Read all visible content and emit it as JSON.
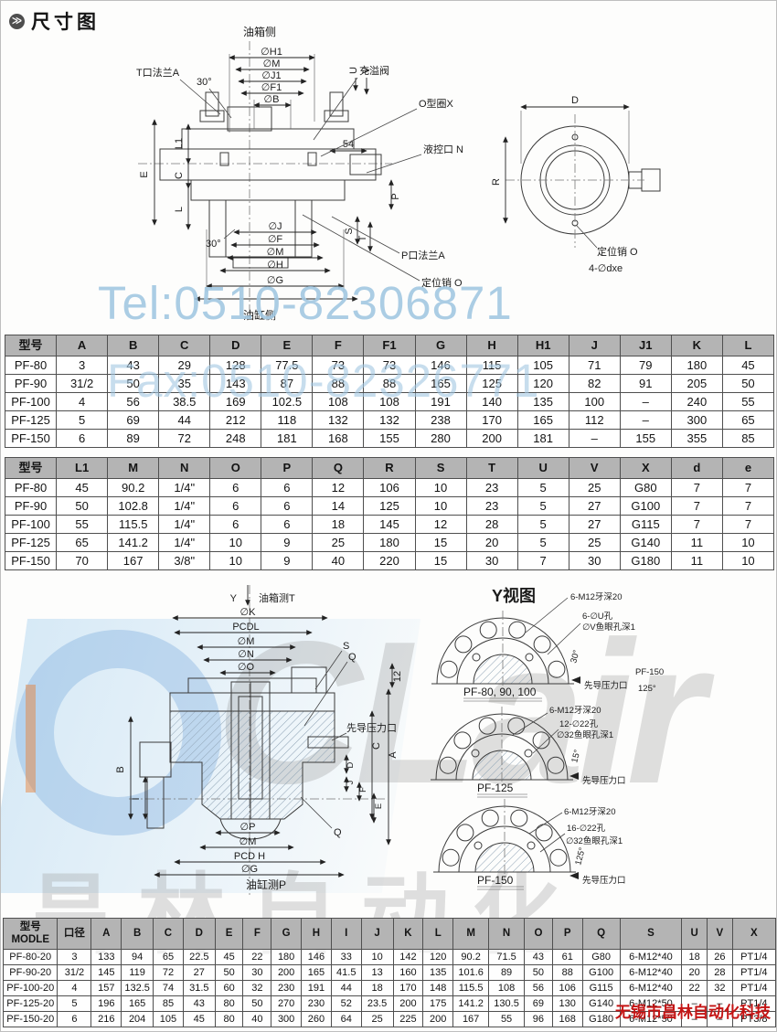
{
  "header": {
    "icon": "≫",
    "title": "尺寸图"
  },
  "wm": {
    "tel": "Tel:0510-82306871",
    "fax": "Fax:0510-82326771",
    "logo": "CLair",
    "logo_cn": "昌林自动化",
    "company": "无锡市昌林自动化科技",
    "accent_blue": "#a3c8e2",
    "accent_red": "#c41414"
  },
  "d1": {
    "tank_side": "油箱侧",
    "cyl_side": "油缸侧",
    "top_dims": [
      "∅H1",
      "∅M",
      "∅J1",
      "∅F1",
      "∅B"
    ],
    "bottom_dims": [
      "∅J",
      "∅F",
      "∅M",
      "∅H",
      "∅G"
    ],
    "left_dims": [
      "E",
      "L1",
      "C",
      "L"
    ],
    "t_flange": "T口法兰A",
    "fill_valve": "充溢阀",
    "o_ring": "O型圈X",
    "pilot_port": "液控口 N",
    "p_flange": "P口法兰A",
    "pin": "定位销 O",
    "angle_top": "30°",
    "angle_bottom": "30°",
    "dim54": "54",
    "dim_u": "U",
    "dim_v": "V",
    "dim_p": "P",
    "dim_s": "S",
    "dim_t": "T",
    "circle_d": "D",
    "circle_r": "R",
    "holes": "4-∅dxe"
  },
  "table1": {
    "headers": [
      "型号",
      "A",
      "B",
      "C",
      "D",
      "E",
      "F",
      "F1",
      "G",
      "H",
      "H1",
      "J",
      "J1",
      "K",
      "L"
    ],
    "rows": [
      [
        "PF-80",
        "3",
        "43",
        "29",
        "128",
        "77.5",
        "73",
        "73",
        "146",
        "115",
        "105",
        "71",
        "79",
        "180",
        "45"
      ],
      [
        "PF-90",
        "31/2",
        "50",
        "35",
        "143",
        "87",
        "88",
        "88",
        "165",
        "125",
        "120",
        "82",
        "91",
        "205",
        "50"
      ],
      [
        "PF-100",
        "4",
        "56",
        "38.5",
        "169",
        "102.5",
        "108",
        "108",
        "191",
        "140",
        "135",
        "100",
        "–",
        "240",
        "55"
      ],
      [
        "PF-125",
        "5",
        "69",
        "44",
        "212",
        "118",
        "132",
        "132",
        "238",
        "170",
        "165",
        "112",
        "–",
        "300",
        "65"
      ],
      [
        "PF-150",
        "6",
        "89",
        "72",
        "248",
        "181",
        "168",
        "155",
        "280",
        "200",
        "181",
        "–",
        "155",
        "355",
        "85"
      ]
    ]
  },
  "table2": {
    "headers": [
      "型号",
      "L1",
      "M",
      "N",
      "O",
      "P",
      "Q",
      "R",
      "S",
      "T",
      "U",
      "V",
      "X",
      "d",
      "e"
    ],
    "rows": [
      [
        "PF-80",
        "45",
        "90.2",
        "1/4\"",
        "6",
        "6",
        "12",
        "106",
        "10",
        "23",
        "5",
        "25",
        "G80",
        "7",
        "7"
      ],
      [
        "PF-90",
        "50",
        "102.8",
        "1/4\"",
        "6",
        "6",
        "14",
        "125",
        "10",
        "23",
        "5",
        "27",
        "G100",
        "7",
        "7"
      ],
      [
        "PF-100",
        "55",
        "115.5",
        "1/4\"",
        "6",
        "6",
        "18",
        "145",
        "12",
        "28",
        "5",
        "27",
        "G115",
        "7",
        "7"
      ],
      [
        "PF-125",
        "65",
        "141.2",
        "1/4\"",
        "10",
        "9",
        "25",
        "180",
        "15",
        "20",
        "5",
        "25",
        "G140",
        "11",
        "10"
      ],
      [
        "PF-150",
        "70",
        "167",
        "3/8\"",
        "10",
        "9",
        "40",
        "220",
        "15",
        "30",
        "7",
        "30",
        "G180",
        "11",
        "10"
      ]
    ]
  },
  "d2": {
    "y": "Y",
    "tank_t": "油箱测T",
    "cyl_p": "油缸测P",
    "top_dims": [
      "∅K",
      "PCDL",
      "∅M",
      "∅N",
      "∅O"
    ],
    "bottom_dims": [
      "∅P",
      "∅M",
      "PCD H",
      "∅G"
    ],
    "dim_b": "B",
    "dim_i": "I",
    "dim_12": "12",
    "dim_c": "C",
    "dim_a": "A",
    "dim_d": "D",
    "dim_j": "J",
    "dim_f": "F",
    "dim_e": "E",
    "s": "S",
    "q": "Q",
    "pilot": "先导压力口",
    "yview": {
      "title": "Y视图",
      "v1": {
        "label": "PF-80, 90, 100",
        "c1": "6-M12牙深20",
        "c2": "6-∅U孔",
        "c3": "∅V鱼眼孔深1",
        "angle": "30°",
        "pilot": "先导压力口",
        "note1": "PF-150",
        "note2": "125°"
      },
      "v2": {
        "label": "PF-125",
        "c1": "6-M12牙深20",
        "c2": "12-∅22孔",
        "c3": "∅32鱼眼孔深1",
        "angle": "15°",
        "pilot": "先导压力口"
      },
      "v3": {
        "label": "PF-150",
        "c1": "6-M12牙深20",
        "c2": "16-∅22孔",
        "c3": "∅32鱼眼孔深1",
        "angle": "125°",
        "pilot": "先导压力口"
      }
    }
  },
  "table3": {
    "headers": [
      "型号\nMODLE",
      "口径",
      "A",
      "B",
      "C",
      "D",
      "E",
      "F",
      "G",
      "H",
      "I",
      "J",
      "K",
      "L",
      "M",
      "N",
      "O",
      "P",
      "Q",
      "S",
      "U",
      "V",
      "X"
    ],
    "rows": [
      [
        "PF-80-20",
        "3",
        "133",
        "94",
        "65",
        "22.5",
        "45",
        "22",
        "180",
        "146",
        "33",
        "10",
        "142",
        "120",
        "90.2",
        "71.5",
        "43",
        "61",
        "G80",
        "6-M12*40",
        "18",
        "26",
        "PT1/4"
      ],
      [
        "PF-90-20",
        "31/2",
        "145",
        "119",
        "72",
        "27",
        "50",
        "30",
        "200",
        "165",
        "41.5",
        "13",
        "160",
        "135",
        "101.6",
        "89",
        "50",
        "88",
        "G100",
        "6-M12*40",
        "20",
        "28",
        "PT1/4"
      ],
      [
        "PF-100-20",
        "4",
        "157",
        "132.5",
        "74",
        "31.5",
        "60",
        "32",
        "230",
        "191",
        "44",
        "18",
        "170",
        "148",
        "115.5",
        "108",
        "56",
        "106",
        "G115",
        "6-M12*40",
        "22",
        "32",
        "PT1/4"
      ],
      [
        "PF-125-20",
        "5",
        "196",
        "165",
        "85",
        "43",
        "80",
        "50",
        "270",
        "230",
        "52",
        "23.5",
        "200",
        "175",
        "141.2",
        "130.5",
        "69",
        "130",
        "G140",
        "6-M12*50",
        "–",
        "–",
        "PT1/4"
      ],
      [
        "PF-150-20",
        "6",
        "216",
        "204",
        "105",
        "45",
        "80",
        "40",
        "300",
        "260",
        "64",
        "25",
        "225",
        "200",
        "167",
        "55",
        "96",
        "168",
        "G180",
        "6-M12*50",
        "–",
        "–",
        "PT3/8"
      ]
    ]
  }
}
